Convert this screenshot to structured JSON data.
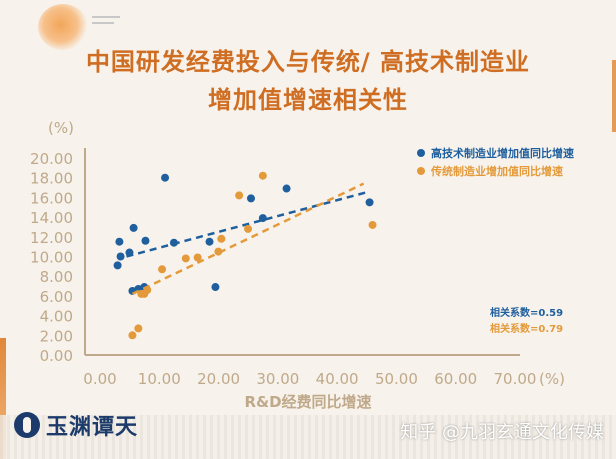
{
  "title_line1": "中国研发经费投入与传统/ 高技术制造业",
  "title_line2": "增加值增速相关性",
  "logo_text": "玉渊谭天",
  "watermark": "知乎 @九羽玄通文化传媒",
  "colors": {
    "title": "#cf6e22",
    "axis": "#c0a98a",
    "tick_text": "#c0a98a",
    "high_tech": "#1f5f9e",
    "traditional": "#e49a3a",
    "background": "#f7f3ec"
  },
  "chart_data": {
    "type": "scatter",
    "y_unit_label": "(%)",
    "x_unit_label": "(%)",
    "xlabel": "R&D经费同比增速",
    "xlim": [
      0,
      70
    ],
    "ylim": [
      0,
      20
    ],
    "x_ticks": [
      "0.00",
      "10.00",
      "20.00",
      "30.00",
      "40.00",
      "50.00",
      "60.00",
      "70.00"
    ],
    "y_ticks": [
      "0.00",
      "2.00",
      "4.00",
      "6.00",
      "8.00",
      "10.00",
      "12.00",
      "14.00",
      "16.00",
      "18.00",
      "20.00"
    ],
    "legend_position": "top-right",
    "series": [
      {
        "name": "高技术制造业增加值同比增速",
        "color": "#1f5f9e",
        "points": [
          [
            5.5,
            9.1
          ],
          [
            6.0,
            10.0
          ],
          [
            5.8,
            11.5
          ],
          [
            7.5,
            10.4
          ],
          [
            8.2,
            12.9
          ],
          [
            8.0,
            6.5
          ],
          [
            9.0,
            6.7
          ],
          [
            10.0,
            6.9
          ],
          [
            10.2,
            11.6
          ],
          [
            13.5,
            18.0
          ],
          [
            15.0,
            11.4
          ],
          [
            21.0,
            11.5
          ],
          [
            22.0,
            6.9
          ],
          [
            28.0,
            15.9
          ],
          [
            30.0,
            13.9
          ],
          [
            34.0,
            16.9
          ],
          [
            48.0,
            15.5
          ]
        ],
        "trendline": [
          [
            7.0,
            10.0
          ],
          [
            48.0,
            16.6
          ]
        ],
        "correlation_label": "相关系数=0.59"
      },
      {
        "name": "传统制造业增加值同比增速",
        "color": "#e49a3a",
        "points": [
          [
            8.0,
            2.0
          ],
          [
            9.0,
            2.7
          ],
          [
            9.5,
            6.2
          ],
          [
            10.0,
            6.2
          ],
          [
            10.5,
            6.6
          ],
          [
            13.0,
            8.7
          ],
          [
            17.0,
            9.8
          ],
          [
            19.0,
            9.9
          ],
          [
            22.5,
            10.5
          ],
          [
            23.0,
            11.8
          ],
          [
            26.0,
            16.2
          ],
          [
            27.5,
            12.8
          ],
          [
            30.0,
            18.2
          ],
          [
            48.5,
            13.2
          ]
        ],
        "trendline": [
          [
            8.0,
            6.2
          ],
          [
            47.0,
            17.4
          ]
        ],
        "correlation_label": "相关系数=0.79"
      }
    ]
  }
}
